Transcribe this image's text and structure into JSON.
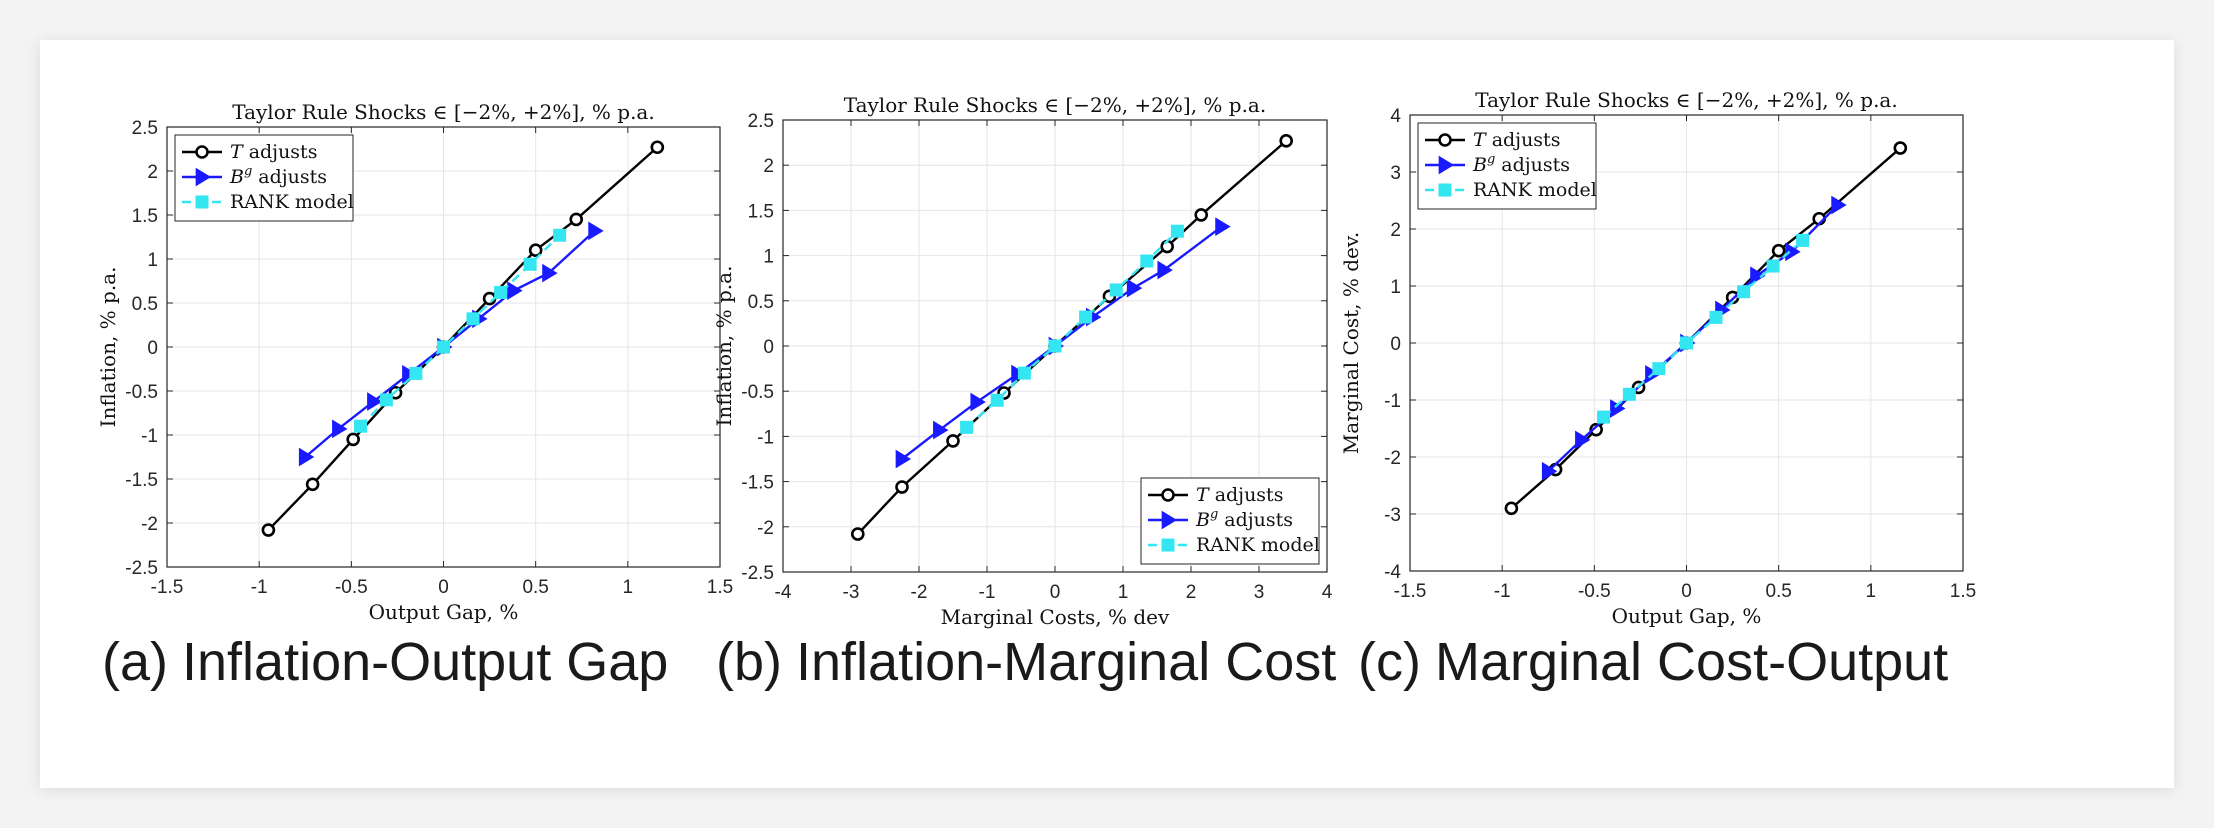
{
  "colors": {
    "t_adjusts": "#000000",
    "bg_adjusts": "#1a1aff",
    "rank": "#33e6f2",
    "grid": "#e6e6e6"
  },
  "legend": {
    "t_label": "adjusts",
    "t_symbol": "T",
    "bg_label": "adjusts",
    "bg_symbol": "B",
    "bg_superscript": "g",
    "rank_label": "RANK model"
  },
  "chart_data": [
    {
      "type": "line",
      "caption_id": "(a)",
      "caption_text": "Inflation-Output Gap",
      "title": "Taylor Rule Shocks ∈ [−2%, +2%], % p.a.",
      "xlabel": "Output Gap, %",
      "ylabel": "Inflation, % p.a.",
      "xlim": [
        -1.5,
        1.5
      ],
      "ylim": [
        -2.5,
        2.5
      ],
      "xticks": [
        -1.5,
        -1,
        -0.5,
        0,
        0.5,
        1,
        1.5
      ],
      "yticks": [
        -2.5,
        -2,
        -1.5,
        -1,
        -0.5,
        0,
        0.5,
        1,
        1.5,
        2,
        2.5
      ],
      "grid": true,
      "legend_position": "top-left",
      "series": [
        {
          "name": "T adjusts",
          "marker": "circle",
          "dash": false,
          "x": [
            -0.95,
            -0.71,
            -0.49,
            -0.26,
            0,
            0.25,
            0.5,
            0.72,
            1.16
          ],
          "y": [
            -2.08,
            -1.56,
            -1.05,
            -0.52,
            0,
            0.55,
            1.1,
            1.45,
            2.27
          ]
        },
        {
          "name": "Bg adjusts",
          "marker": "triangle",
          "dash": false,
          "x": [
            -0.75,
            -0.57,
            -0.38,
            -0.19,
            0,
            0.19,
            0.38,
            0.57,
            0.82
          ],
          "y": [
            -1.25,
            -0.93,
            -0.62,
            -0.31,
            0,
            0.32,
            0.64,
            0.84,
            1.32
          ]
        },
        {
          "name": "RANK model",
          "marker": "square",
          "dash": true,
          "x": [
            -0.45,
            -0.31,
            -0.15,
            0,
            0.16,
            0.31,
            0.47,
            0.63
          ],
          "y": [
            -0.9,
            -0.6,
            -0.3,
            0,
            0.32,
            0.62,
            0.94,
            1.27
          ]
        }
      ]
    },
    {
      "type": "line",
      "caption_id": "(b)",
      "caption_text": "Inflation-Marginal Cost",
      "title": "Taylor Rule Shocks ∈ [−2%, +2%], % p.a.",
      "xlabel": "Marginal Costs, % dev",
      "ylabel": "Inflation, % p.a.",
      "xlim": [
        -4,
        4
      ],
      "ylim": [
        -2.5,
        2.5
      ],
      "xticks": [
        -4,
        -3,
        -2,
        -1,
        0,
        1,
        2,
        3,
        4
      ],
      "yticks": [
        -2.5,
        -2,
        -1.5,
        -1,
        -0.5,
        0,
        0.5,
        1,
        1.5,
        2,
        2.5
      ],
      "grid": true,
      "legend_position": "bottom-right",
      "series": [
        {
          "name": "T adjusts",
          "marker": "circle",
          "dash": false,
          "x": [
            -2.9,
            -2.25,
            -1.5,
            -0.75,
            0,
            0.8,
            1.65,
            2.15,
            3.4
          ],
          "y": [
            -2.08,
            -1.56,
            -1.05,
            -0.52,
            0,
            0.55,
            1.1,
            1.45,
            2.27
          ]
        },
        {
          "name": "Bg adjusts",
          "marker": "triangle",
          "dash": false,
          "x": [
            -2.25,
            -1.7,
            -1.15,
            -0.55,
            0,
            0.55,
            1.15,
            1.6,
            2.45
          ],
          "y": [
            -1.25,
            -0.93,
            -0.62,
            -0.31,
            0,
            0.32,
            0.64,
            0.84,
            1.32
          ]
        },
        {
          "name": "RANK model",
          "marker": "square",
          "dash": true,
          "x": [
            -1.3,
            -0.85,
            -0.45,
            0,
            0.45,
            0.9,
            1.35,
            1.8
          ],
          "y": [
            -0.9,
            -0.6,
            -0.3,
            0,
            0.32,
            0.62,
            0.94,
            1.27
          ]
        }
      ]
    },
    {
      "type": "line",
      "caption_id": "(c)",
      "caption_text": "Marginal Cost-Output",
      "title": "Taylor Rule Shocks ∈ [−2%, +2%], % p.a.",
      "xlabel": "Output Gap, %",
      "ylabel": "Marginal Cost, % dev.",
      "xlim": [
        -1.5,
        1.5
      ],
      "ylim": [
        -4,
        4
      ],
      "xticks": [
        -1.5,
        -1,
        -0.5,
        0,
        0.5,
        1,
        1.5
      ],
      "yticks": [
        -4,
        -3,
        -2,
        -1,
        0,
        1,
        2,
        3,
        4
      ],
      "grid": true,
      "legend_position": "top-left",
      "series": [
        {
          "name": "T adjusts",
          "marker": "circle",
          "dash": false,
          "x": [
            -0.95,
            -0.71,
            -0.49,
            -0.26,
            0,
            0.25,
            0.5,
            0.72,
            1.16
          ],
          "y": [
            -2.9,
            -2.22,
            -1.52,
            -0.78,
            0,
            0.8,
            1.62,
            2.18,
            3.42
          ]
        },
        {
          "name": "Bg adjusts",
          "marker": "triangle",
          "dash": false,
          "x": [
            -0.75,
            -0.57,
            -0.38,
            -0.19,
            0,
            0.19,
            0.38,
            0.57,
            0.82
          ],
          "y": [
            -2.25,
            -1.7,
            -1.15,
            -0.55,
            0,
            0.58,
            1.18,
            1.6,
            2.42
          ]
        },
        {
          "name": "RANK model",
          "marker": "square",
          "dash": true,
          "x": [
            -0.45,
            -0.31,
            -0.15,
            0,
            0.16,
            0.31,
            0.47,
            0.63
          ],
          "y": [
            -1.3,
            -0.9,
            -0.45,
            0,
            0.45,
            0.9,
            1.35,
            1.8
          ]
        }
      ]
    }
  ]
}
